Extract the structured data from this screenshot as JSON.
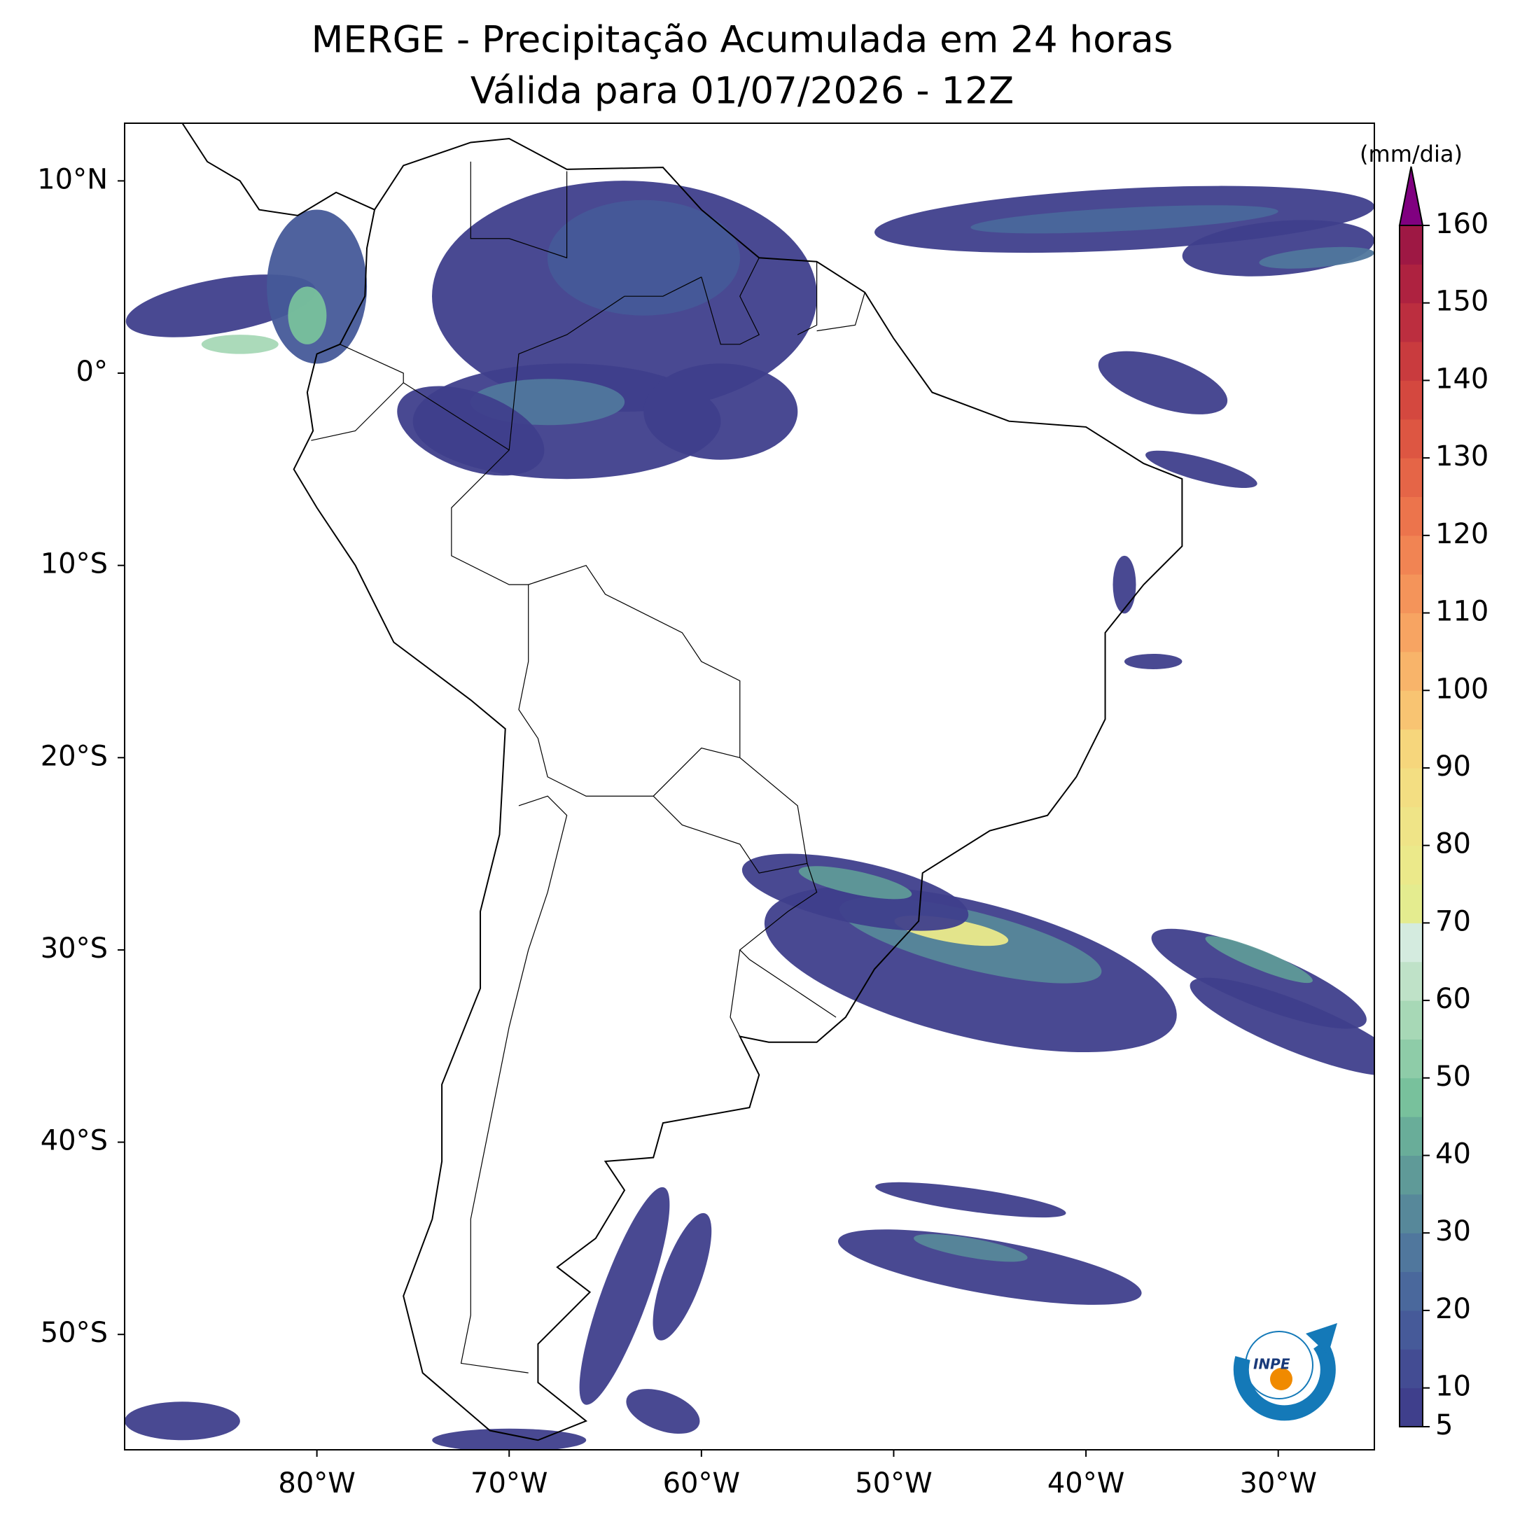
{
  "title": "MERGE - Precipitação Acumulada em 24 horas",
  "subtitle": "Válida para 01/07/2026 - 12Z",
  "map": {
    "xlim": [
      -90,
      -25
    ],
    "ylim": [
      -56,
      13
    ],
    "xticks": [
      {
        "value": -80,
        "label": "80°W"
      },
      {
        "value": -70,
        "label": "70°W"
      },
      {
        "value": -60,
        "label": "60°W"
      },
      {
        "value": -50,
        "label": "50°W"
      },
      {
        "value": -40,
        "label": "40°W"
      },
      {
        "value": -30,
        "label": "30°W"
      }
    ],
    "yticks": [
      {
        "value": 10,
        "label": "10°N"
      },
      {
        "value": 0,
        "label": "0°"
      },
      {
        "value": -10,
        "label": "10°S"
      },
      {
        "value": -20,
        "label": "20°S"
      },
      {
        "value": -30,
        "label": "30°S"
      },
      {
        "value": -40,
        "label": "40°S"
      },
      {
        "value": -50,
        "label": "50°S"
      }
    ]
  },
  "colorbar": {
    "label": "(mm/dia)",
    "lim": [
      5,
      160
    ],
    "ticks": [
      5,
      10,
      20,
      30,
      40,
      50,
      60,
      70,
      80,
      90,
      100,
      110,
      120,
      130,
      140,
      150,
      160
    ],
    "levels": [
      5,
      10,
      15,
      20,
      25,
      30,
      35,
      40,
      45,
      50,
      55,
      60,
      65,
      70,
      75,
      80,
      85,
      90,
      95,
      100,
      105,
      110,
      115,
      120,
      125,
      130,
      135,
      140,
      145,
      150,
      155,
      160
    ],
    "colors": [
      "#3f3f8c",
      "#434c93",
      "#465a99",
      "#4a689c",
      "#50779d",
      "#57889a",
      "#5f9a98",
      "#69ad99",
      "#78c19c",
      "#8ecca8",
      "#a7d8b6",
      "#bfe2c8",
      "#d4ebdf",
      "#e4ec8f",
      "#ebe98a",
      "#efe487",
      "#f3de82",
      "#f6d67c",
      "#f8c472",
      "#f8b46a",
      "#f7a462",
      "#f4945a",
      "#f18453",
      "#ec744c",
      "#e56547",
      "#dd5642",
      "#d4483f",
      "#c93b3e",
      "#bc2e3f",
      "#ae2240",
      "#9e1844"
    ],
    "extend_color": "#800080"
  },
  "logo": "INPE"
}
